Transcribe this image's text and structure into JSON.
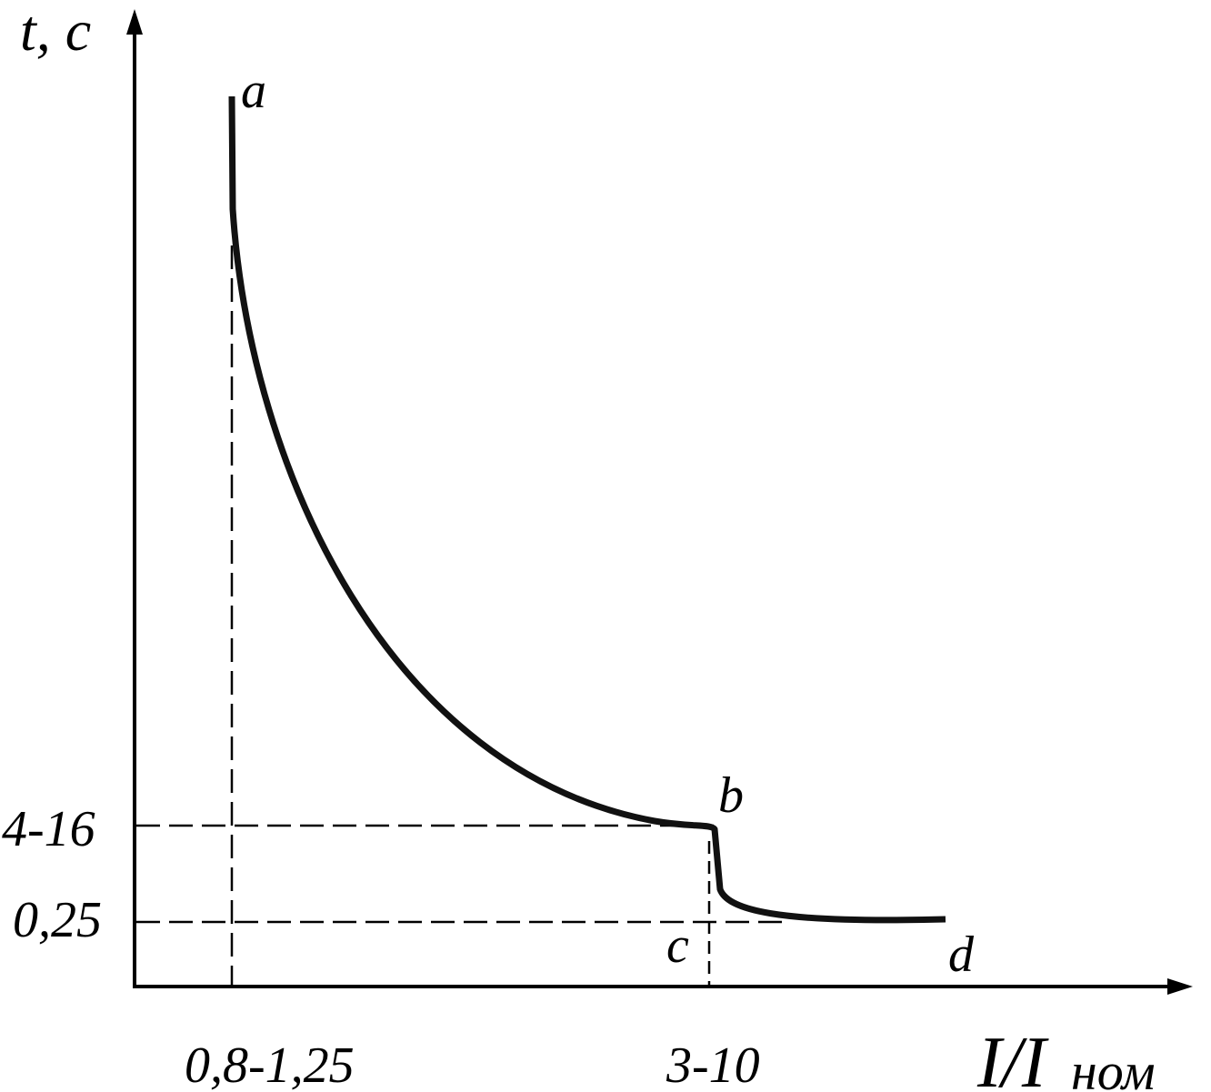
{
  "axes": {
    "y_label": "t, c",
    "x_label": "I/I",
    "x_label_subscript": "ном"
  },
  "ticks": {
    "y": [
      "4-16",
      "0,25"
    ],
    "x": [
      "0,8-1,25",
      "3-10"
    ]
  },
  "points": [
    "a",
    "b",
    "c",
    "d"
  ]
}
